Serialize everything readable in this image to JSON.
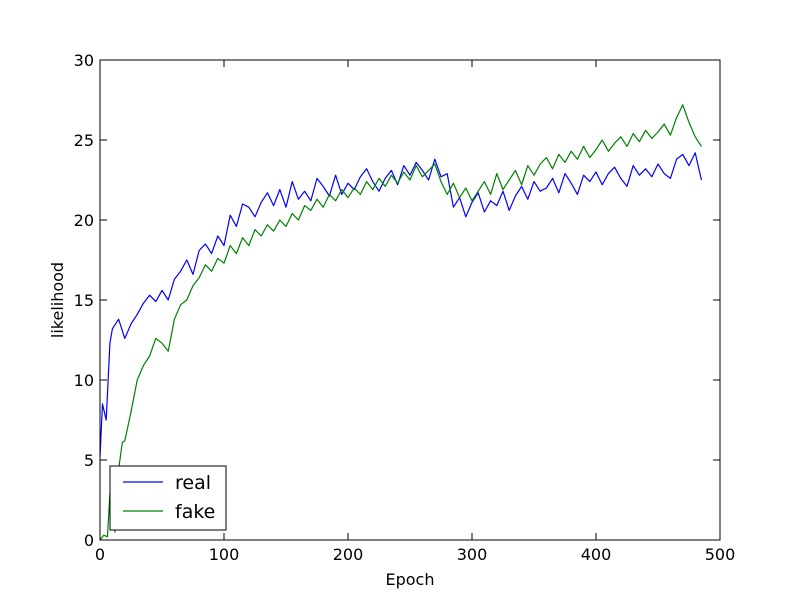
{
  "chart_data": {
    "type": "line",
    "title": "",
    "xlabel": "Epoch",
    "ylabel": "likelihood",
    "xlim": [
      0,
      500
    ],
    "ylim": [
      0,
      30
    ],
    "xticks": [
      0,
      100,
      200,
      300,
      400,
      500
    ],
    "yticks": [
      0,
      5,
      10,
      15,
      20,
      25,
      30
    ],
    "grid": false,
    "legend_position": "lower-left",
    "series": [
      {
        "name": "real",
        "color": "#0000ff",
        "x": [
          0,
          2,
          5,
          8,
          10,
          15,
          20,
          25,
          30,
          35,
          40,
          45,
          50,
          55,
          60,
          65,
          70,
          75,
          80,
          85,
          90,
          95,
          100,
          105,
          110,
          115,
          120,
          125,
          130,
          135,
          140,
          145,
          150,
          155,
          160,
          165,
          170,
          175,
          180,
          185,
          190,
          195,
          200,
          205,
          210,
          215,
          220,
          225,
          230,
          235,
          240,
          245,
          250,
          255,
          260,
          265,
          270,
          275,
          280,
          285,
          290,
          295,
          300,
          305,
          310,
          315,
          320,
          325,
          330,
          335,
          340,
          345,
          350,
          355,
          360,
          365,
          370,
          375,
          380,
          385,
          390,
          395,
          400,
          405,
          410,
          415,
          420,
          425,
          430,
          435,
          440,
          445,
          450,
          455,
          460,
          465,
          470,
          475,
          480,
          485
        ],
        "y": [
          5.2,
          8.5,
          7.5,
          12.3,
          13.2,
          13.8,
          12.6,
          13.5,
          14.1,
          14.8,
          15.3,
          14.9,
          15.6,
          15.0,
          16.3,
          16.8,
          17.5,
          16.6,
          18.1,
          18.5,
          17.9,
          19.0,
          18.4,
          20.3,
          19.6,
          21.0,
          20.8,
          20.2,
          21.1,
          21.7,
          20.9,
          21.9,
          20.8,
          22.4,
          21.3,
          21.8,
          21.2,
          22.6,
          22.1,
          21.5,
          22.8,
          21.6,
          22.3,
          21.9,
          22.7,
          23.2,
          22.4,
          21.8,
          22.6,
          23.1,
          22.2,
          23.4,
          22.8,
          23.6,
          23.1,
          22.5,
          23.8,
          22.7,
          22.9,
          20.8,
          21.4,
          20.2,
          21.1,
          21.7,
          20.5,
          21.2,
          20.9,
          21.8,
          20.6,
          21.5,
          22.1,
          21.3,
          22.4,
          21.8,
          22.0,
          22.6,
          21.7,
          22.9,
          22.3,
          21.6,
          22.8,
          22.4,
          23.0,
          22.2,
          22.9,
          23.3,
          22.6,
          22.1,
          23.4,
          22.8,
          23.2,
          22.7,
          23.5,
          22.9,
          22.6,
          23.8,
          24.1,
          23.4,
          24.2,
          22.5
        ]
      },
      {
        "name": "fake",
        "color": "#008000",
        "x": [
          0,
          3,
          6,
          8,
          10,
          12,
          15,
          18,
          20,
          25,
          30,
          35,
          40,
          45,
          50,
          55,
          60,
          65,
          70,
          75,
          80,
          85,
          90,
          95,
          100,
          105,
          110,
          115,
          120,
          125,
          130,
          135,
          140,
          145,
          150,
          155,
          160,
          165,
          170,
          175,
          180,
          185,
          190,
          195,
          200,
          205,
          210,
          215,
          220,
          225,
          230,
          235,
          240,
          245,
          250,
          255,
          260,
          265,
          270,
          275,
          280,
          285,
          290,
          295,
          300,
          305,
          310,
          315,
          320,
          325,
          330,
          335,
          340,
          345,
          350,
          355,
          360,
          365,
          370,
          375,
          380,
          385,
          390,
          395,
          400,
          405,
          410,
          415,
          420,
          425,
          430,
          435,
          440,
          445,
          450,
          455,
          460,
          465,
          470,
          475,
          480,
          485
        ],
        "y": [
          0.0,
          0.3,
          0.2,
          2.9,
          2.0,
          0.5,
          4.4,
          6.1,
          6.2,
          8.0,
          10.0,
          10.9,
          11.5,
          12.6,
          12.3,
          11.8,
          13.8,
          14.7,
          15.0,
          15.9,
          16.4,
          17.2,
          16.8,
          17.6,
          17.3,
          18.4,
          17.9,
          18.9,
          18.4,
          19.4,
          19.0,
          19.7,
          19.3,
          20.0,
          19.6,
          20.4,
          20.0,
          20.9,
          20.6,
          21.3,
          20.8,
          21.6,
          21.2,
          21.9,
          21.4,
          22.0,
          21.6,
          22.4,
          21.9,
          22.6,
          22.1,
          22.8,
          22.3,
          23.0,
          22.5,
          23.4,
          22.7,
          23.1,
          23.5,
          22.4,
          21.6,
          22.3,
          21.4,
          22.0,
          21.2,
          21.8,
          22.4,
          21.6,
          22.9,
          21.9,
          22.5,
          23.1,
          22.2,
          23.4,
          22.8,
          23.5,
          23.9,
          23.2,
          24.1,
          23.6,
          24.3,
          23.8,
          24.6,
          23.9,
          24.4,
          25.0,
          24.3,
          24.8,
          25.2,
          24.6,
          25.4,
          24.9,
          25.6,
          25.1,
          25.5,
          26.0,
          25.3,
          26.4,
          27.2,
          26.1,
          25.2,
          24.6
        ]
      }
    ]
  }
}
